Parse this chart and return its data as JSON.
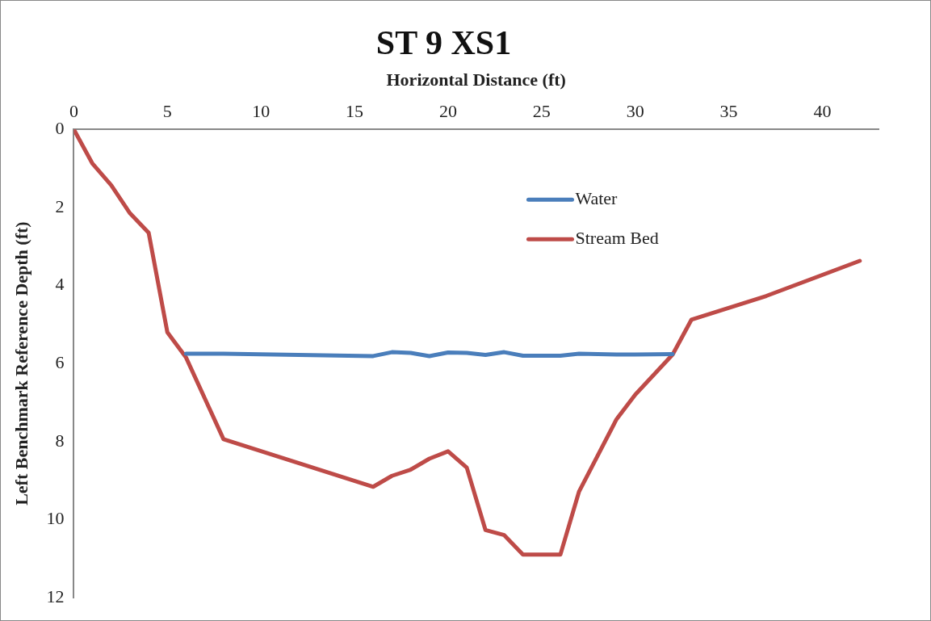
{
  "chart_data": {
    "type": "line",
    "title": "ST 9 XS1",
    "xlabel": "Horizontal Distance (ft)",
    "ylabel": "Left Benchmark Reference Depth (ft)",
    "xlim": [
      0,
      43
    ],
    "xticks": [
      0,
      5,
      10,
      15,
      20,
      25,
      30,
      35,
      40
    ],
    "ylim": [
      12,
      0
    ],
    "yticks": [
      0,
      2,
      4,
      6,
      8,
      10,
      12
    ],
    "grid": false,
    "legend": "top right",
    "marker": "none",
    "line_style": "solid",
    "series": [
      {
        "name": "Water",
        "color": "#4a7ebb",
        "x": [
          6,
          8,
          16,
          17,
          18,
          19,
          20,
          21,
          22,
          23,
          24,
          26,
          27,
          29,
          30,
          32
        ],
        "values": [
          5.75,
          5.75,
          5.81,
          5.71,
          5.73,
          5.81,
          5.72,
          5.73,
          5.78,
          5.71,
          5.8,
          5.8,
          5.75,
          5.77,
          5.77,
          5.76
        ]
      },
      {
        "name": "Stream Bed",
        "color": "#be4b48",
        "x": [
          0,
          1,
          2,
          3,
          4,
          5,
          6,
          8,
          16,
          17,
          18,
          19,
          20,
          21,
          22,
          23,
          24,
          26,
          27,
          29,
          30,
          32,
          33,
          37,
          42
        ],
        "values": [
          0,
          0.88,
          1.43,
          2.15,
          2.65,
          5.2,
          5.85,
          7.94,
          9.16,
          8.88,
          8.72,
          8.44,
          8.25,
          8.67,
          10.27,
          10.4,
          10.9,
          10.9,
          9.28,
          7.43,
          6.8,
          5.77,
          4.88,
          4.27,
          3.37
        ]
      }
    ]
  }
}
